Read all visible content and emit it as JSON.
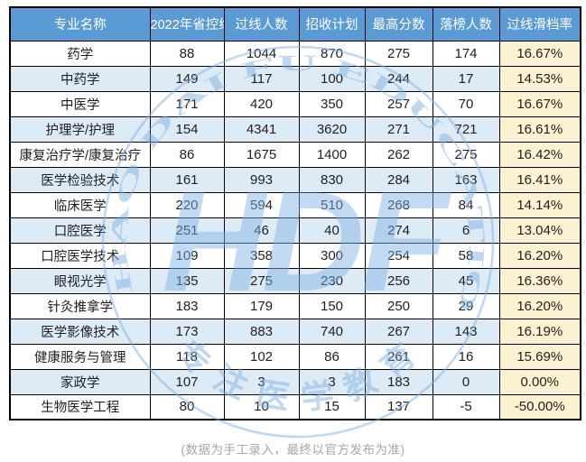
{
  "chart_data": {
    "type": "table",
    "columns": [
      "专业名称",
      "2022年省控线",
      "过线人数",
      "招收计划",
      "最高分数",
      "落榜人数",
      "过线滑档率"
    ],
    "rows": [
      [
        "药学",
        "88",
        "1044",
        "870",
        "275",
        "174",
        "16.67%"
      ],
      [
        "中药学",
        "149",
        "117",
        "100",
        "244",
        "17",
        "14.53%"
      ],
      [
        "中医学",
        "171",
        "420",
        "350",
        "257",
        "70",
        "16.67%"
      ],
      [
        "护理学/护理",
        "154",
        "4341",
        "3620",
        "271",
        "721",
        "16.61%"
      ],
      [
        "康复治疗学/康复治疗",
        "86",
        "1675",
        "1400",
        "262",
        "275",
        "16.42%"
      ],
      [
        "医学检验技术",
        "161",
        "993",
        "830",
        "284",
        "163",
        "16.41%"
      ],
      [
        "临床医学",
        "220",
        "594",
        "510",
        "268",
        "84",
        "14.14%"
      ],
      [
        "口腔医学",
        "251",
        "46",
        "40",
        "274",
        "6",
        "13.04%"
      ],
      [
        "口腔医学技术",
        "109",
        "358",
        "300",
        "254",
        "58",
        "16.20%"
      ],
      [
        "眼视光学",
        "135",
        "275",
        "230",
        "256",
        "45",
        "16.36%"
      ],
      [
        "针灸推拿学",
        "183",
        "179",
        "150",
        "250",
        "29",
        "16.20%"
      ],
      [
        "医学影像技术",
        "173",
        "883",
        "740",
        "267",
        "143",
        "16.19%"
      ],
      [
        "健康服务与管理",
        "118",
        "102",
        "86",
        "261",
        "16",
        "15.69%"
      ],
      [
        "家政学",
        "107",
        "3",
        "3",
        "183",
        "0",
        "0.00%"
      ],
      [
        "生物医学工程",
        "80",
        "10",
        "15",
        "137",
        "-5",
        "-50.00%"
      ]
    ],
    "note": "(数据为手工录入，最终以官方发布为准)"
  },
  "watermark": {
    "ring_text": "HAO DAI FU EDUCATION",
    "monogram": "HDF",
    "slogan": "专注医学教育"
  },
  "colors": {
    "header_bg": "#5B9BD5",
    "header_text": "#FFFFFF",
    "row_bg": "#FFFFFF",
    "row_alt_bg": "#DDEBF7",
    "rate_col_bg": "#FCF2D1",
    "border_color": "#000000",
    "footer_text": "#A6A6A6",
    "watermark_color": "#7FB2E5"
  }
}
